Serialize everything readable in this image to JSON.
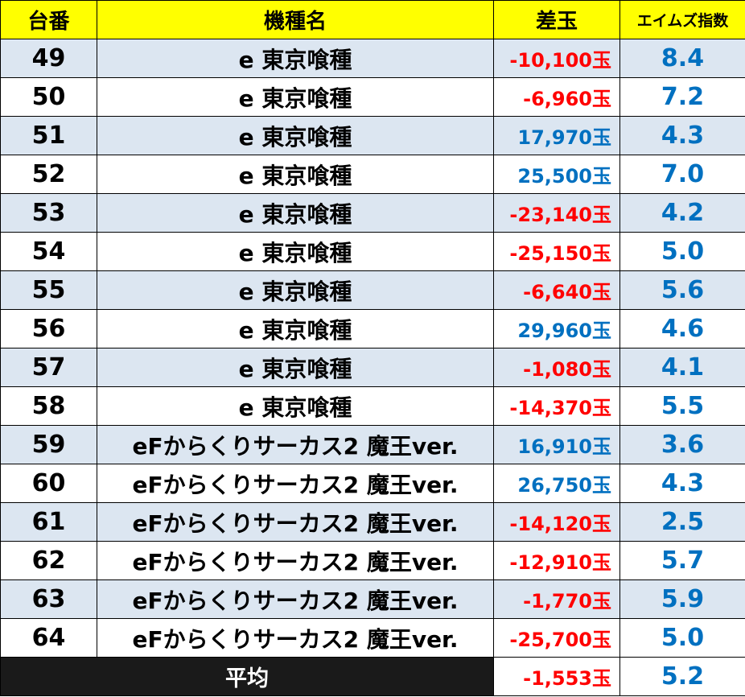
{
  "headers": {
    "unit": "台番",
    "machine": "機種名",
    "diff": "差玉",
    "aim": "エイムズ指数"
  },
  "rows": [
    {
      "unit": "49",
      "machine": "e 東京喰種",
      "diff": "-10,100玉",
      "aim": "8.4"
    },
    {
      "unit": "50",
      "machine": "e 東京喰種",
      "diff": "-6,960玉",
      "aim": "7.2"
    },
    {
      "unit": "51",
      "machine": "e 東京喰種",
      "diff": "17,970玉",
      "aim": "4.3"
    },
    {
      "unit": "52",
      "machine": "e 東京喰種",
      "diff": "25,500玉",
      "aim": "7.0"
    },
    {
      "unit": "53",
      "machine": "e 東京喰種",
      "diff": "-23,140玉",
      "aim": "4.2"
    },
    {
      "unit": "54",
      "machine": "e 東京喰種",
      "diff": "-25,150玉",
      "aim": "5.0"
    },
    {
      "unit": "55",
      "machine": "e 東京喰種",
      "diff": "-6,640玉",
      "aim": "5.6"
    },
    {
      "unit": "56",
      "machine": "e 東京喰種",
      "diff": "29,960玉",
      "aim": "4.6"
    },
    {
      "unit": "57",
      "machine": "e 東京喰種",
      "diff": "-1,080玉",
      "aim": "4.1"
    },
    {
      "unit": "58",
      "machine": "e 東京喰種",
      "diff": "-14,370玉",
      "aim": "5.5"
    },
    {
      "unit": "59",
      "machine": "eFからくりサーカス2 魔王ver.",
      "diff": "16,910玉",
      "aim": "3.6"
    },
    {
      "unit": "60",
      "machine": "eFからくりサーカス2 魔王ver.",
      "diff": "26,750玉",
      "aim": "4.3"
    },
    {
      "unit": "61",
      "machine": "eFからくりサーカス2 魔王ver.",
      "diff": "-14,120玉",
      "aim": "2.5"
    },
    {
      "unit": "62",
      "machine": "eFからくりサーカス2 魔王ver.",
      "diff": "-12,910玉",
      "aim": "5.7"
    },
    {
      "unit": "63",
      "machine": "eFからくりサーカス2 魔王ver.",
      "diff": "-1,770玉",
      "aim": "5.9"
    },
    {
      "unit": "64",
      "machine": "eFからくりサーカス2 魔王ver.",
      "diff": "-25,700玉",
      "aim": "5.0"
    }
  ],
  "average": {
    "label": "平均",
    "diff": "-1,553玉",
    "aim": "5.2"
  },
  "colors": {
    "header_bg": "#ffff00",
    "row_alt_bg": "#dce6f1",
    "negative": "#ff0000",
    "positive": "#0070c0",
    "average_label_bg": "#1a1a1a"
  }
}
